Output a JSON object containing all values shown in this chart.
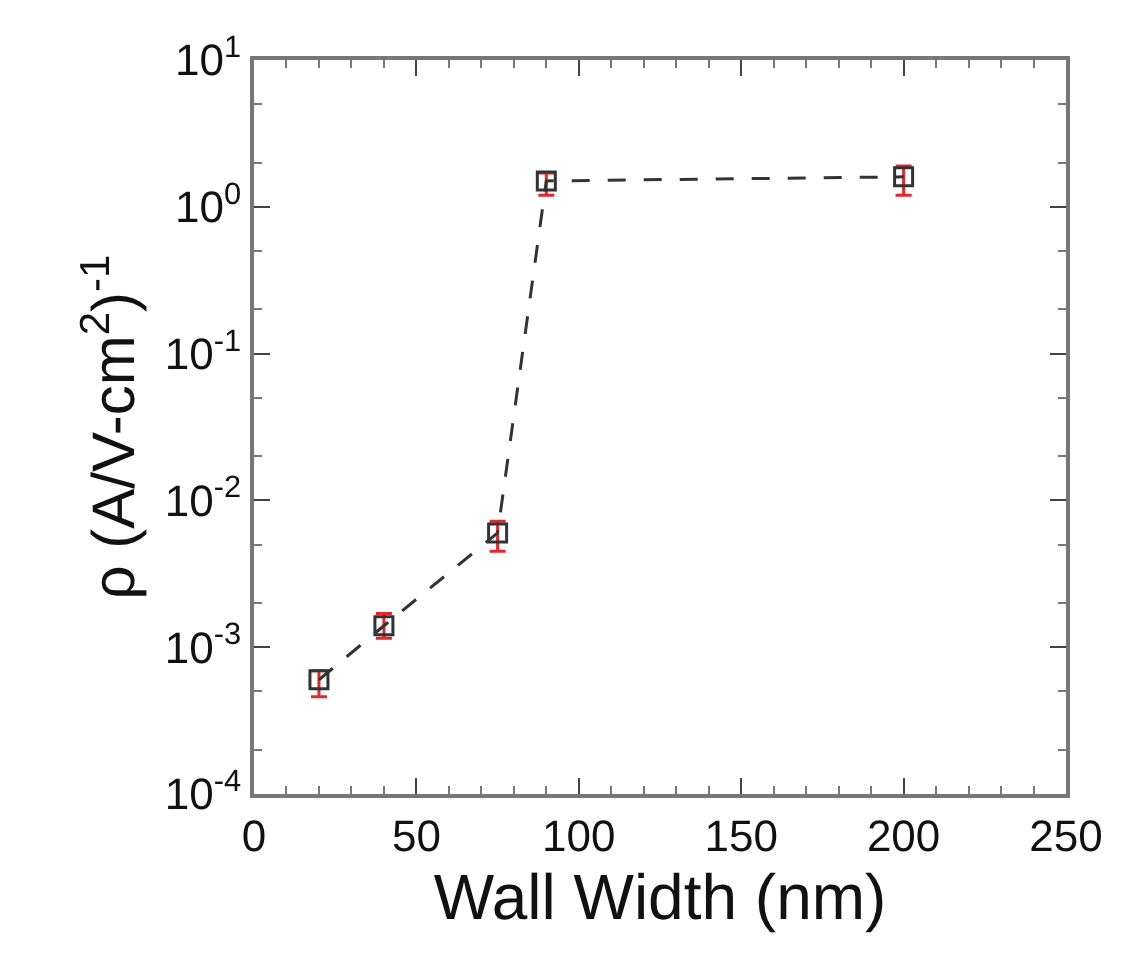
{
  "chart_data": {
    "type": "line",
    "xlabel": "Wall Width (nm)",
    "ylabel": "ρ (A/V-cm$^{2}$)$^{-1}$",
    "x": [
      20,
      40,
      75,
      90,
      200
    ],
    "series": [
      {
        "color": "#333333",
        "values": [
          0.0006,
          0.0014,
          0.006,
          1.5,
          1.6
        ],
        "errors": [
          [
            0.00046,
            0.00069
          ],
          [
            0.00115,
            0.0017
          ],
          [
            0.0045,
            0.0072
          ],
          [
            1.2,
            1.7
          ],
          [
            1.2,
            1.9
          ]
        ]
      }
    ],
    "xlim": [
      0,
      250
    ],
    "xticks": [
      0,
      50,
      100,
      150,
      200,
      250
    ],
    "ylim": [
      0.0001,
      10
    ],
    "yticks": [
      {
        "value": 0.0001,
        "label": "10$^{-4}$"
      },
      {
        "value": 0.001,
        "label": "10$^{-3}$"
      },
      {
        "value": 0.01,
        "label": "10$^{-2}$"
      },
      {
        "value": 0.1,
        "label": "10$^{-1}$"
      },
      {
        "value": 1,
        "label": "10$^{0}$"
      },
      {
        "value": 10,
        "label": "10$^{1}$"
      }
    ],
    "log": "y",
    "grid": false,
    "marker": "square",
    "line_style": "dashed"
  }
}
